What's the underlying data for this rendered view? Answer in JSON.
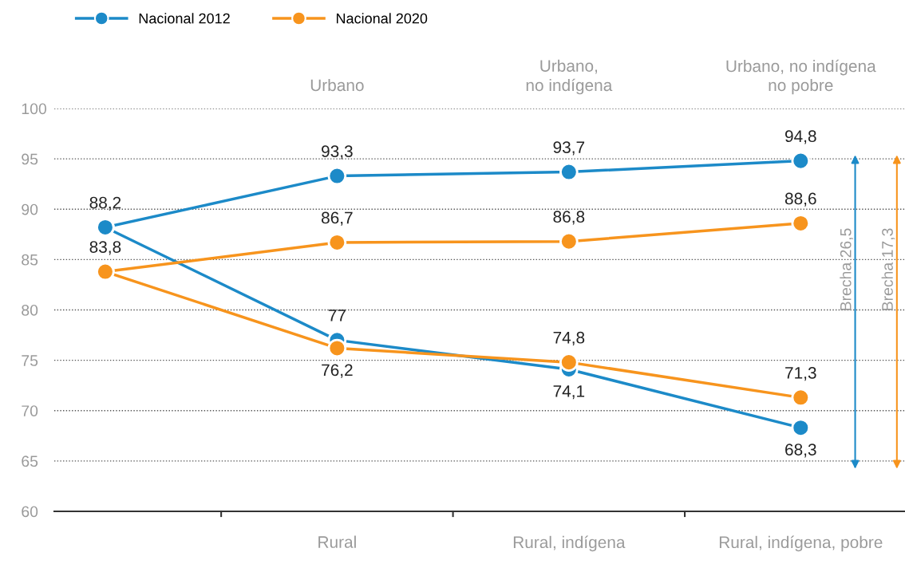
{
  "chart_data": {
    "type": "line",
    "categories": [
      null,
      "Rural",
      "Rural, indígena",
      "Rural, indígena, pobre"
    ],
    "series": [
      {
        "name": "Nacional 2012",
        "color": "#1c8ac8",
        "values": [
          88.2,
          93.3,
          93.7,
          94.8
        ],
        "value_labels": [
          "88,2",
          "93,3",
          "93,7",
          "94,8"
        ]
      },
      {
        "color": "#1c8ac8",
        "values": [
          88.2,
          77,
          74.1,
          68.3
        ],
        "value_labels": [
          null,
          "77",
          "74,1",
          "68,3"
        ]
      },
      {
        "name": "Nacional 2020",
        "color": "#f7941d",
        "values": [
          83.8,
          86.7,
          86.8,
          88.6
        ],
        "value_labels": [
          "83,8",
          "86,7",
          "86,8",
          "88,6"
        ]
      },
      {
        "color": "#f7941d",
        "values": [
          83.8,
          76.2,
          74.8,
          71.3
        ],
        "value_labels": [
          null,
          "76,2",
          "74,8",
          "71,3"
        ]
      }
    ],
    "annotations": [
      "Urbano",
      "Urbano,\nno indígena",
      "Urbano, no indígena\nno pobre",
      "Brecha 26,5",
      "Brecha 17,3"
    ],
    "ylim": [
      60,
      100
    ],
    "yticks": [
      60,
      65,
      70,
      75,
      80,
      85,
      90,
      95,
      100
    ],
    "grid": "y",
    "legend": "top left",
    "marker": "circle",
    "line_style": "solid"
  }
}
